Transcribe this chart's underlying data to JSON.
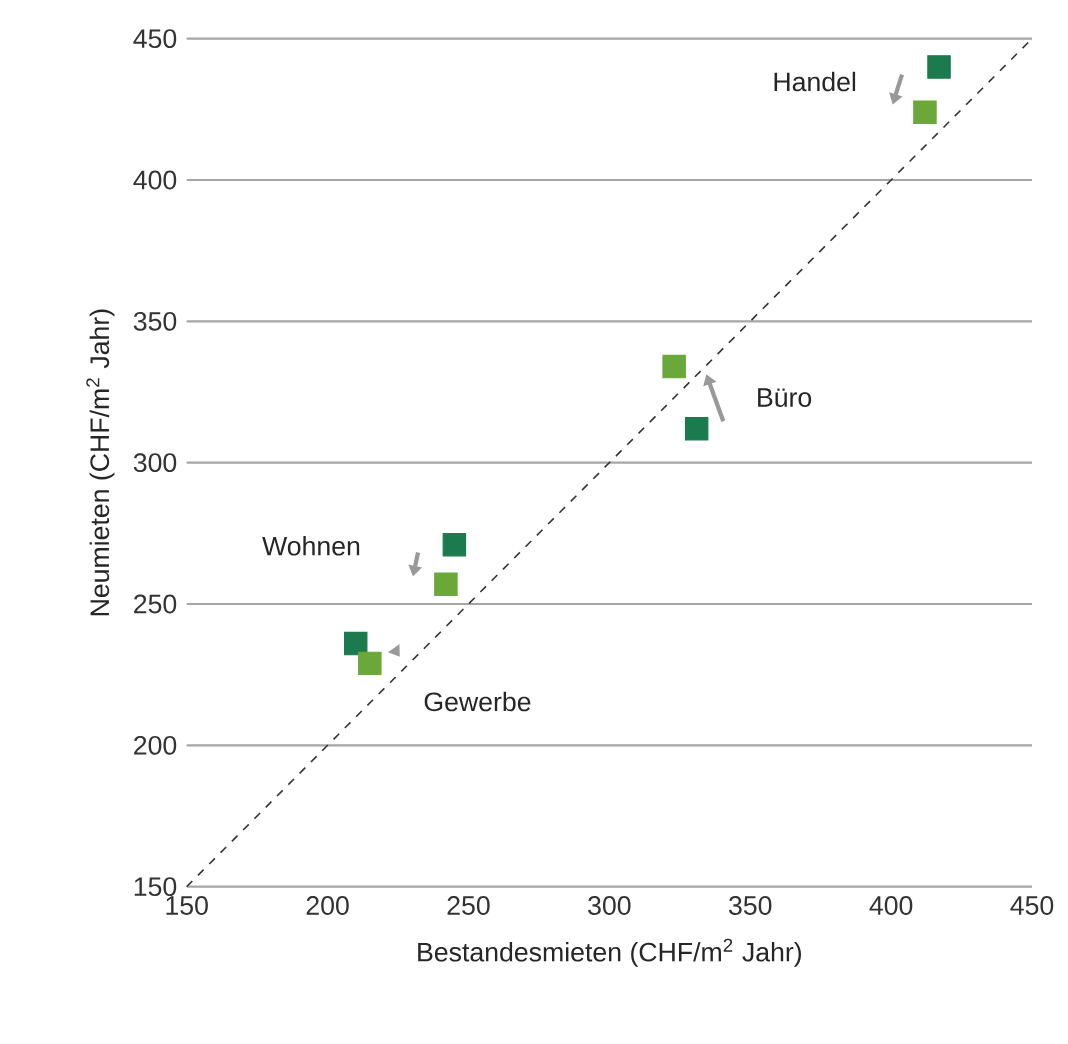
{
  "chart_data": {
    "type": "scatter",
    "xlabel": "Bestandesmieten (CHF/m$^{2}$ Jahr)",
    "ylabel": "Neumieten (CHF/m$^{2}$ Jahr)",
    "xlim": [
      150,
      450
    ],
    "ylim": [
      150,
      450
    ],
    "xticks": [
      150,
      200,
      250,
      300,
      350,
      400,
      450
    ],
    "yticks": [
      150,
      200,
      250,
      300,
      350,
      400,
      450
    ],
    "grid": "y",
    "marker": "square",
    "series": [
      {
        "color": "#1b7a4e",
        "x": [
          417,
          331,
          245,
          210
        ],
        "values": [
          440,
          312,
          271,
          236
        ]
      },
      {
        "color": "#6aa83a",
        "x": [
          412,
          323,
          242,
          215
        ],
        "values": [
          424,
          334,
          257,
          229
        ]
      },
      {
        "type": "line",
        "color": "#333333",
        "line_style": "dashed",
        "marker": "none",
        "x": [
          150,
          450
        ],
        "values": [
          150,
          450
        ]
      }
    ],
    "annotations": [
      "Handel",
      "Büro",
      "Wohnen",
      "Gewerbe"
    ]
  }
}
